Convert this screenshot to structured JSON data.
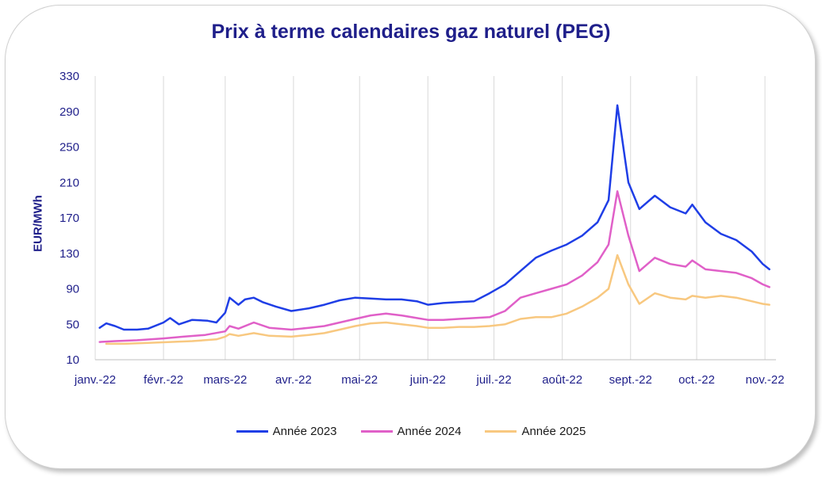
{
  "chart_data": {
    "type": "line",
    "title": "Prix à terme calendaires gaz naturel (PEG)",
    "ylabel": "EUR/MWh",
    "xlabel": "",
    "ylim": [
      10,
      330
    ],
    "yticks": [
      10,
      50,
      90,
      130,
      170,
      210,
      250,
      290,
      330
    ],
    "x_tick_labels": [
      "janv.-22",
      "févr.-22",
      "mars-22",
      "avr.-22",
      "mai-22",
      "juin-22",
      "juil.-22",
      "août-22",
      "sept.-22",
      "oct.-22",
      "nov.-22"
    ],
    "grid": "vertical",
    "legend_position": "bottom",
    "series": [
      {
        "name": "Année 2023",
        "color": "#1f3ee6",
        "points": [
          [
            "2022-01-03",
            46
          ],
          [
            "2022-01-06",
            51
          ],
          [
            "2022-01-10",
            48
          ],
          [
            "2022-01-14",
            44
          ],
          [
            "2022-01-20",
            44
          ],
          [
            "2022-01-25",
            45
          ],
          [
            "2022-02-01",
            52
          ],
          [
            "2022-02-04",
            57
          ],
          [
            "2022-02-08",
            50
          ],
          [
            "2022-02-14",
            55
          ],
          [
            "2022-02-21",
            54
          ],
          [
            "2022-02-25",
            52
          ],
          [
            "2022-03-01",
            63
          ],
          [
            "2022-03-03",
            80
          ],
          [
            "2022-03-07",
            72
          ],
          [
            "2022-03-10",
            78
          ],
          [
            "2022-03-14",
            80
          ],
          [
            "2022-03-18",
            75
          ],
          [
            "2022-03-24",
            70
          ],
          [
            "2022-03-31",
            65
          ],
          [
            "2022-04-08",
            68
          ],
          [
            "2022-04-15",
            72
          ],
          [
            "2022-04-22",
            77
          ],
          [
            "2022-04-29",
            80
          ],
          [
            "2022-05-06",
            79
          ],
          [
            "2022-05-13",
            78
          ],
          [
            "2022-05-20",
            78
          ],
          [
            "2022-05-27",
            76
          ],
          [
            "2022-06-01",
            72
          ],
          [
            "2022-06-08",
            74
          ],
          [
            "2022-06-15",
            75
          ],
          [
            "2022-06-22",
            76
          ],
          [
            "2022-06-29",
            85
          ],
          [
            "2022-07-06",
            95
          ],
          [
            "2022-07-13",
            110
          ],
          [
            "2022-07-20",
            125
          ],
          [
            "2022-07-27",
            133
          ],
          [
            "2022-08-03",
            140
          ],
          [
            "2022-08-10",
            150
          ],
          [
            "2022-08-17",
            165
          ],
          [
            "2022-08-22",
            190
          ],
          [
            "2022-08-26",
            297
          ],
          [
            "2022-08-31",
            210
          ],
          [
            "2022-09-05",
            180
          ],
          [
            "2022-09-12",
            195
          ],
          [
            "2022-09-19",
            182
          ],
          [
            "2022-09-26",
            175
          ],
          [
            "2022-09-29",
            185
          ],
          [
            "2022-10-05",
            165
          ],
          [
            "2022-10-12",
            152
          ],
          [
            "2022-10-19",
            145
          ],
          [
            "2022-10-26",
            132
          ],
          [
            "2022-10-31",
            118
          ],
          [
            "2022-11-03",
            112
          ]
        ]
      },
      {
        "name": "Année 2024",
        "color": "#e060c8",
        "points": [
          [
            "2022-01-03",
            30
          ],
          [
            "2022-01-10",
            31
          ],
          [
            "2022-01-20",
            32
          ],
          [
            "2022-02-01",
            34
          ],
          [
            "2022-02-10",
            36
          ],
          [
            "2022-02-20",
            38
          ],
          [
            "2022-03-01",
            42
          ],
          [
            "2022-03-03",
            48
          ],
          [
            "2022-03-07",
            45
          ],
          [
            "2022-03-14",
            52
          ],
          [
            "2022-03-21",
            46
          ],
          [
            "2022-03-31",
            44
          ],
          [
            "2022-04-08",
            46
          ],
          [
            "2022-04-15",
            48
          ],
          [
            "2022-04-22",
            52
          ],
          [
            "2022-04-29",
            56
          ],
          [
            "2022-05-06",
            60
          ],
          [
            "2022-05-13",
            62
          ],
          [
            "2022-05-20",
            60
          ],
          [
            "2022-05-27",
            57
          ],
          [
            "2022-06-01",
            55
          ],
          [
            "2022-06-08",
            55
          ],
          [
            "2022-06-15",
            56
          ],
          [
            "2022-06-22",
            57
          ],
          [
            "2022-06-29",
            58
          ],
          [
            "2022-07-06",
            65
          ],
          [
            "2022-07-13",
            80
          ],
          [
            "2022-07-20",
            85
          ],
          [
            "2022-07-27",
            90
          ],
          [
            "2022-08-03",
            95
          ],
          [
            "2022-08-10",
            105
          ],
          [
            "2022-08-17",
            120
          ],
          [
            "2022-08-22",
            140
          ],
          [
            "2022-08-26",
            200
          ],
          [
            "2022-08-31",
            150
          ],
          [
            "2022-09-05",
            110
          ],
          [
            "2022-09-12",
            125
          ],
          [
            "2022-09-19",
            118
          ],
          [
            "2022-09-26",
            115
          ],
          [
            "2022-09-29",
            122
          ],
          [
            "2022-10-05",
            112
          ],
          [
            "2022-10-12",
            110
          ],
          [
            "2022-10-19",
            108
          ],
          [
            "2022-10-26",
            102
          ],
          [
            "2022-10-31",
            95
          ],
          [
            "2022-11-03",
            92
          ]
        ]
      },
      {
        "name": "Année 2025",
        "color": "#f8c880",
        "points": [
          [
            "2022-01-06",
            28
          ],
          [
            "2022-01-14",
            28
          ],
          [
            "2022-01-25",
            29
          ],
          [
            "2022-02-04",
            30
          ],
          [
            "2022-02-14",
            31
          ],
          [
            "2022-02-25",
            33
          ],
          [
            "2022-03-01",
            36
          ],
          [
            "2022-03-03",
            39
          ],
          [
            "2022-03-07",
            37
          ],
          [
            "2022-03-14",
            40
          ],
          [
            "2022-03-21",
            37
          ],
          [
            "2022-03-31",
            36
          ],
          [
            "2022-04-08",
            38
          ],
          [
            "2022-04-15",
            40
          ],
          [
            "2022-04-22",
            44
          ],
          [
            "2022-04-29",
            48
          ],
          [
            "2022-05-06",
            51
          ],
          [
            "2022-05-13",
            52
          ],
          [
            "2022-05-20",
            50
          ],
          [
            "2022-05-27",
            48
          ],
          [
            "2022-06-01",
            46
          ],
          [
            "2022-06-08",
            46
          ],
          [
            "2022-06-15",
            47
          ],
          [
            "2022-06-22",
            47
          ],
          [
            "2022-06-29",
            48
          ],
          [
            "2022-07-06",
            50
          ],
          [
            "2022-07-13",
            56
          ],
          [
            "2022-07-20",
            58
          ],
          [
            "2022-07-27",
            58
          ],
          [
            "2022-08-03",
            62
          ],
          [
            "2022-08-10",
            70
          ],
          [
            "2022-08-17",
            80
          ],
          [
            "2022-08-22",
            90
          ],
          [
            "2022-08-26",
            128
          ],
          [
            "2022-08-31",
            95
          ],
          [
            "2022-09-05",
            73
          ],
          [
            "2022-09-12",
            85
          ],
          [
            "2022-09-19",
            80
          ],
          [
            "2022-09-26",
            78
          ],
          [
            "2022-09-29",
            82
          ],
          [
            "2022-10-05",
            80
          ],
          [
            "2022-10-12",
            82
          ],
          [
            "2022-10-19",
            80
          ],
          [
            "2022-10-26",
            76
          ],
          [
            "2022-10-31",
            73
          ],
          [
            "2022-11-03",
            72
          ]
        ]
      }
    ]
  }
}
